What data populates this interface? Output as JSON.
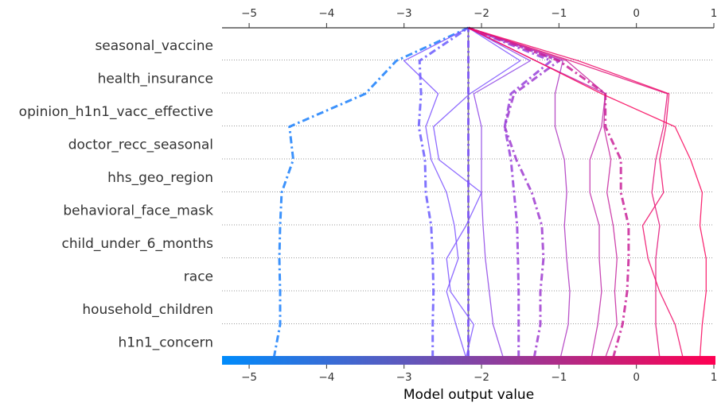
{
  "chart_data": {
    "type": "line",
    "subtype": "shap-decision-plot",
    "features": [
      "seasonal_vaccine",
      "health_insurance",
      "opinion_h1n1_vacc_effective",
      "doctor_recc_seasonal",
      "hhs_geo_region",
      "behavioral_face_mask",
      "child_under_6_months",
      "race",
      "household_children",
      "h1n1_concern"
    ],
    "x_ticks": [
      -5,
      -4,
      -3,
      -2,
      -1,
      0,
      1
    ],
    "x_tick_labels": [
      "−5",
      "−4",
      "−3",
      "−2",
      "−1",
      "0",
      "1"
    ],
    "xlim": [
      -5.35,
      1.0
    ],
    "xlabel": "Model output value",
    "base_value": -2.17,
    "colormap": [
      "#008bfb",
      "#ff0052"
    ],
    "grid": "horizontal dotted",
    "series": [
      {
        "style": "dashdot",
        "values": [
          -4.68,
          -4.6,
          -4.6,
          -4.61,
          -4.6,
          -4.58,
          -4.43,
          -4.48,
          -3.5,
          -3.1,
          -2.17
        ]
      },
      {
        "style": "dashdot",
        "values": [
          -2.63,
          -2.63,
          -2.62,
          -2.63,
          -2.65,
          -2.72,
          -2.73,
          -2.81,
          -2.78,
          -2.8,
          -2.17
        ]
      },
      {
        "style": "solid",
        "values": [
          -2.2,
          -2.33,
          -2.45,
          -2.3,
          -2.35,
          -2.45,
          -2.65,
          -2.72,
          -2.56,
          -3.0,
          -2.17
        ]
      },
      {
        "style": "dashdot",
        "values": [
          -2.17,
          -2.17,
          -2.17,
          -2.17,
          -2.17,
          -2.17,
          -2.17,
          -2.17,
          -2.17,
          -2.17,
          -2.17
        ]
      },
      {
        "style": "solid",
        "values": [
          -2.2,
          -2.1,
          -2.4,
          -2.45,
          -2.2,
          -2.0,
          -2.55,
          -2.62,
          -2.15,
          -1.5,
          -2.17
        ]
      },
      {
        "style": "solid",
        "values": [
          -1.72,
          -1.85,
          -1.9,
          -1.95,
          -1.98,
          -2.0,
          -2.0,
          -2.0,
          -2.1,
          -1.37,
          -2.17
        ]
      },
      {
        "style": "dashdot",
        "values": [
          -1.52,
          -1.52,
          -1.52,
          -1.53,
          -1.54,
          -1.58,
          -1.62,
          -1.7,
          -1.62,
          -1.1,
          -2.17
        ]
      },
      {
        "style": "dashdot",
        "values": [
          -1.32,
          -1.24,
          -1.24,
          -1.2,
          -1.22,
          -1.35,
          -1.55,
          -1.7,
          -1.58,
          -1.0,
          -2.17
        ]
      },
      {
        "style": "solid",
        "values": [
          -0.98,
          -0.88,
          -0.86,
          -0.9,
          -0.93,
          -0.9,
          -0.93,
          -1.05,
          -1.05,
          -0.95,
          -2.17
        ]
      },
      {
        "style": "solid",
        "values": [
          -0.58,
          -0.5,
          -0.45,
          -0.48,
          -0.48,
          -0.6,
          -0.6,
          -0.45,
          -0.4,
          -1.3,
          -2.17
        ]
      },
      {
        "style": "solid",
        "values": [
          -0.4,
          -0.25,
          -0.28,
          -0.25,
          -0.3,
          -0.38,
          -0.33,
          -0.42,
          -0.4,
          -0.9,
          -2.17
        ]
      },
      {
        "style": "dashdot",
        "values": [
          -0.3,
          -0.18,
          -0.12,
          -0.1,
          -0.1,
          -0.2,
          -0.2,
          -0.4,
          -0.4,
          -1.0,
          -2.17
        ]
      },
      {
        "style": "solid",
        "values": [
          0.3,
          0.25,
          0.25,
          0.25,
          0.3,
          0.2,
          0.25,
          0.35,
          0.4,
          -0.85,
          -2.17
        ]
      },
      {
        "style": "solid",
        "values": [
          0.6,
          0.5,
          0.3,
          0.15,
          0.08,
          0.35,
          0.3,
          0.38,
          0.42,
          -0.75,
          -2.17
        ]
      },
      {
        "style": "solid",
        "values": [
          0.82,
          0.85,
          0.9,
          0.9,
          0.82,
          0.85,
          0.7,
          0.5,
          -0.45,
          -1.3,
          -2.17
        ]
      }
    ]
  }
}
